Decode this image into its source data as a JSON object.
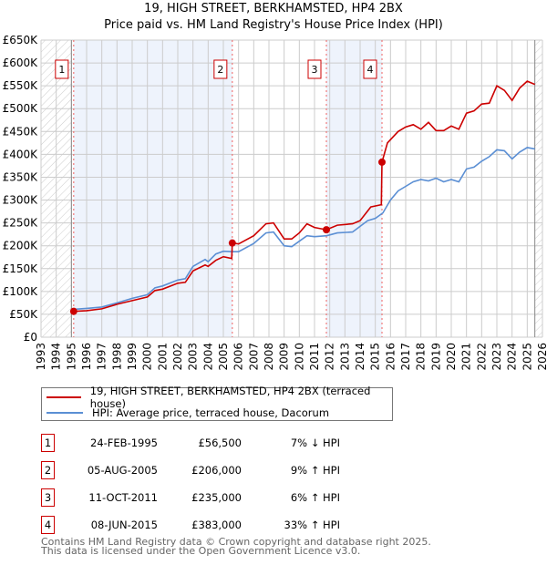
{
  "title_line1": "19, HIGH STREET, BERKHAMSTED, HP4 2BX",
  "title_line2": "Price paid vs. HM Land Registry's House Price Index (HPI)",
  "legend": [
    {
      "label": "19, HIGH STREET, BERKHAMSTED, HP4 2BX (terraced house)",
      "color": "#cc0000"
    },
    {
      "label": "HPI: Average price, terraced house, Dacorum",
      "color": "#5b8fd4"
    }
  ],
  "transactions": [
    {
      "num": "1",
      "date": "24-FEB-1995",
      "price": "£56,500",
      "hpi": "7% ↓ HPI"
    },
    {
      "num": "2",
      "date": "05-AUG-2005",
      "price": "£206,000",
      "hpi": "9% ↑ HPI"
    },
    {
      "num": "3",
      "date": "11-OCT-2011",
      "price": "£235,000",
      "hpi": "6% ↑ HPI"
    },
    {
      "num": "4",
      "date": "08-JUN-2015",
      "price": "£383,000",
      "hpi": "33% ↑ HPI"
    }
  ],
  "footer": {
    "line1": "Contains HM Land Registry data © Crown copyright and database right 2025.",
    "line2": "This data is licensed under the Open Government Licence v3.0."
  },
  "chart_data": {
    "type": "line",
    "xlim": [
      1993,
      2026
    ],
    "ylim": [
      0,
      650000
    ],
    "yticks": [
      0,
      50000,
      100000,
      150000,
      200000,
      250000,
      300000,
      350000,
      400000,
      450000,
      500000,
      550000,
      600000,
      650000
    ],
    "ytick_labels": [
      "£0",
      "£50K",
      "£100K",
      "£150K",
      "£200K",
      "£250K",
      "£300K",
      "£350K",
      "£400K",
      "£450K",
      "£500K",
      "£550K",
      "£600K",
      "£650K"
    ],
    "xtick_labels": [
      "1993",
      "1994",
      "1995",
      "1996",
      "1997",
      "1998",
      "1999",
      "2000",
      "2001",
      "2002",
      "2003",
      "2004",
      "2005",
      "2006",
      "2007",
      "2008",
      "2009",
      "2010",
      "2011",
      "2012",
      "2013",
      "2014",
      "2015",
      "2016",
      "2017",
      "2018",
      "2019",
      "2020",
      "2021",
      "2022",
      "2023",
      "2024",
      "2025",
      "2026"
    ],
    "grid": true,
    "hatched_before": 1995.0,
    "hatched_after": 2025.5,
    "shaded_spans": [
      [
        1995.15,
        2005.6
      ],
      [
        2011.78,
        2015.44
      ]
    ],
    "sales": [
      {
        "label": "1",
        "x": 1995.15,
        "y": 56500
      },
      {
        "label": "2",
        "x": 2005.59,
        "y": 206000
      },
      {
        "label": "3",
        "x": 2011.78,
        "y": 235000
      },
      {
        "label": "4",
        "x": 2015.44,
        "y": 383000
      }
    ],
    "series": [
      {
        "name": "19, HIGH STREET, BERKHAMSTED, HP4 2BX (terraced house)",
        "color": "#cc0000",
        "x": [
          1995.15,
          1996,
          1997,
          1998,
          1999,
          2000,
          2000.5,
          2001,
          2002,
          2002.5,
          2003,
          2003.8,
          2004,
          2004.5,
          2005,
          2005.55,
          2005.59,
          2006,
          2007,
          2007.8,
          2008.3,
          2009,
          2009.5,
          2010,
          2010.5,
          2011,
          2011.78,
          2012.5,
          2013.5,
          2014,
          2014.7,
          2015.4,
          2015.44,
          2015.8,
          2016.5,
          2017,
          2017.5,
          2018,
          2018.5,
          2019,
          2019.5,
          2020,
          2020.5,
          2021,
          2021.5,
          2022,
          2022.5,
          2023,
          2023.5,
          2024,
          2024.5,
          2025,
          2025.5
        ],
        "y": [
          56.5,
          58,
          62,
          72,
          80,
          88,
          102,
          105,
          118,
          120,
          145,
          158,
          155,
          168,
          176,
          172,
          206,
          204,
          222,
          248,
          250,
          215,
          215,
          228,
          248,
          240,
          235,
          245,
          248,
          255,
          285,
          290,
          383,
          425,
          450,
          460,
          465,
          455,
          470,
          452,
          452,
          462,
          455,
          490,
          495,
          510,
          512,
          550,
          540,
          518,
          545,
          560,
          553
        ],
        "y_unit": "thousands GBP"
      },
      {
        "name": "HPI: Average price, terraced house, Dacorum",
        "color": "#5b8fd4",
        "x": [
          1995.15,
          1996,
          1997,
          1998,
          1999,
          2000,
          2000.5,
          2001,
          2002,
          2002.5,
          2003,
          2003.8,
          2004,
          2004.5,
          2005,
          2005.6,
          2006,
          2007,
          2007.8,
          2008.3,
          2009,
          2009.5,
          2010,
          2010.5,
          2011,
          2011.8,
          2012.5,
          2013.5,
          2014.5,
          2015,
          2015.5,
          2016,
          2016.5,
          2017,
          2017.5,
          2018,
          2018.5,
          2019,
          2019.5,
          2020,
          2020.5,
          2021,
          2021.5,
          2022,
          2022.5,
          2023,
          2023.5,
          2024,
          2024.5,
          2025,
          2025.5
        ],
        "y": [
          61,
          63,
          66,
          75,
          85,
          93,
          108,
          112,
          125,
          128,
          155,
          170,
          165,
          182,
          188,
          187,
          187,
          205,
          228,
          230,
          200,
          198,
          210,
          222,
          220,
          222,
          228,
          230,
          255,
          260,
          272,
          300,
          320,
          330,
          340,
          345,
          342,
          348,
          340,
          345,
          340,
          368,
          372,
          385,
          395,
          410,
          408,
          390,
          405,
          415,
          412
        ],
        "y_unit": "thousands GBP"
      }
    ]
  }
}
